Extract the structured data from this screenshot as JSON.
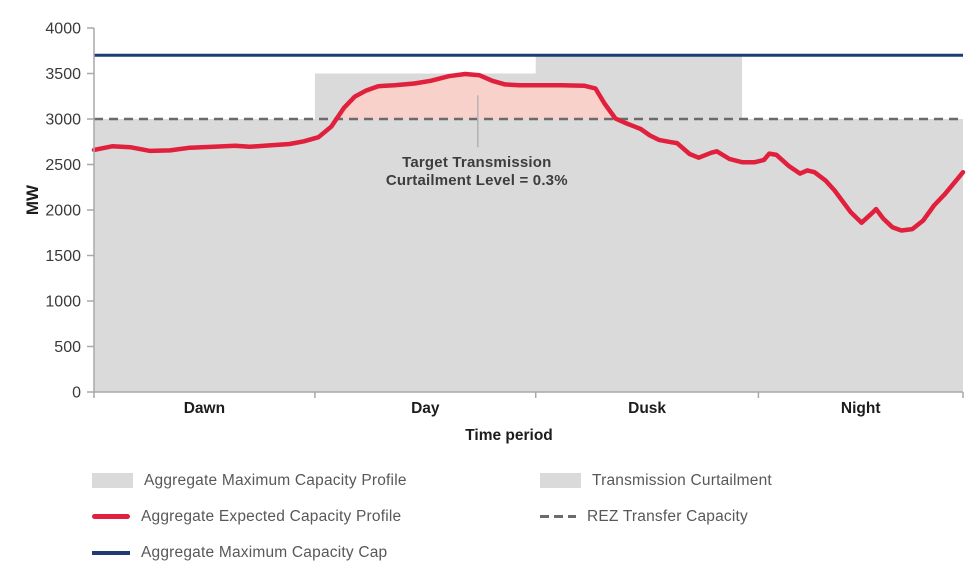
{
  "chart_data": {
    "type": "area",
    "title": "",
    "xlabel": "Time period",
    "ylabel": "MW",
    "ylim": [
      0,
      4000
    ],
    "y_ticks": [
      0,
      500,
      1000,
      1500,
      2000,
      2500,
      3000,
      3500,
      4000
    ],
    "x_range": [
      0,
      24
    ],
    "x_period_boundaries": [
      0,
      6.1,
      12.2,
      18.35,
      24
    ],
    "x_categories": [
      "Dawn",
      "Day",
      "Dusk",
      "Night"
    ],
    "grid": "off",
    "legend_position": "bottom",
    "series": [
      {
        "name": "Aggregate Maximum Capacity Profile",
        "type": "step-area",
        "steps": [
          {
            "from": 0,
            "to": 6.1,
            "value": 3000
          },
          {
            "from": 6.1,
            "to": 12.2,
            "value": 3500
          },
          {
            "from": 12.2,
            "to": 17.9,
            "value": 3700
          },
          {
            "from": 17.9,
            "to": 24,
            "value": 3000
          }
        ]
      },
      {
        "name": "Transmission Curtailment",
        "type": "area-between-line-and-baseline",
        "baseline": 3000
      },
      {
        "name": "Aggregate Expected Capacity Profile",
        "type": "line",
        "points": [
          [
            0,
            2660
          ],
          [
            0.5,
            2700
          ],
          [
            1.0,
            2690
          ],
          [
            1.55,
            2650
          ],
          [
            2.1,
            2655
          ],
          [
            2.65,
            2685
          ],
          [
            3.3,
            2695
          ],
          [
            3.9,
            2705
          ],
          [
            4.3,
            2695
          ],
          [
            4.85,
            2710
          ],
          [
            5.4,
            2725
          ],
          [
            5.8,
            2755
          ],
          [
            6.2,
            2800
          ],
          [
            6.55,
            2915
          ],
          [
            6.9,
            3120
          ],
          [
            7.2,
            3245
          ],
          [
            7.5,
            3310
          ],
          [
            7.85,
            3360
          ],
          [
            8.3,
            3370
          ],
          [
            8.85,
            3390
          ],
          [
            9.3,
            3420
          ],
          [
            9.8,
            3470
          ],
          [
            10.25,
            3495
          ],
          [
            10.65,
            3480
          ],
          [
            11.0,
            3420
          ],
          [
            11.35,
            3380
          ],
          [
            11.75,
            3370
          ],
          [
            12.9,
            3370
          ],
          [
            13.55,
            3365
          ],
          [
            13.85,
            3335
          ],
          [
            14.1,
            3170
          ],
          [
            14.4,
            3005
          ],
          [
            14.65,
            2960
          ],
          [
            15.1,
            2890
          ],
          [
            15.35,
            2820
          ],
          [
            15.6,
            2770
          ],
          [
            15.9,
            2748
          ],
          [
            16.1,
            2735
          ],
          [
            16.45,
            2615
          ],
          [
            16.7,
            2575
          ],
          [
            17.05,
            2630
          ],
          [
            17.2,
            2645
          ],
          [
            17.55,
            2560
          ],
          [
            17.9,
            2525
          ],
          [
            18.25,
            2525
          ],
          [
            18.5,
            2550
          ],
          [
            18.65,
            2620
          ],
          [
            18.85,
            2605
          ],
          [
            19.2,
            2480
          ],
          [
            19.5,
            2400
          ],
          [
            19.7,
            2435
          ],
          [
            19.9,
            2415
          ],
          [
            20.2,
            2325
          ],
          [
            20.45,
            2215
          ],
          [
            20.9,
            1975
          ],
          [
            21.2,
            1860
          ],
          [
            21.5,
            1970
          ],
          [
            21.6,
            2010
          ],
          [
            21.8,
            1905
          ],
          [
            22.05,
            1810
          ],
          [
            22.3,
            1775
          ],
          [
            22.6,
            1790
          ],
          [
            22.9,
            1885
          ],
          [
            23.2,
            2050
          ],
          [
            23.5,
            2175
          ],
          [
            23.8,
            2320
          ],
          [
            24,
            2415
          ]
        ]
      },
      {
        "name": "Aggregate Maximum Capacity Cap",
        "type": "hline",
        "value": 3700
      },
      {
        "name": "REZ Transfer Capacity",
        "type": "hline-dashed",
        "value": 3000
      }
    ],
    "annotation": {
      "text_line1": "Target Transmission",
      "text_line2": "Curtailment Level = 0.3%",
      "x": 10.6,
      "pointer_top_mw": 3260,
      "pointer_bottom_mw": 2690
    },
    "colors": {
      "max_profile_fill": "#d9dad9",
      "curtailment_fill": "#f8d2ca",
      "curtailment_legend_fill": "#d9dad9",
      "expected_line": "#e0203c",
      "cap_line": "#1f3b73",
      "rez_dash": "#6b6b6b",
      "axis_line": "#a9a9a9",
      "tick_label": "#3a3a3a",
      "category_label": "#1c1c1c",
      "annotation_text": "#3d3d3d",
      "annotation_pointer": "#b3b3b3"
    }
  },
  "legend": {
    "items": [
      {
        "label": "Aggregate Maximum Capacity Profile",
        "swatch": "area"
      },
      {
        "label": "Aggregate Expected Capacity Profile",
        "swatch": "red-line"
      },
      {
        "label": "Aggregate Maximum Capacity Cap",
        "swatch": "navy-line"
      },
      {
        "label": "Transmission Curtailment",
        "swatch": "area2"
      },
      {
        "label": "REZ Transfer Capacity",
        "swatch": "dashed"
      }
    ]
  }
}
